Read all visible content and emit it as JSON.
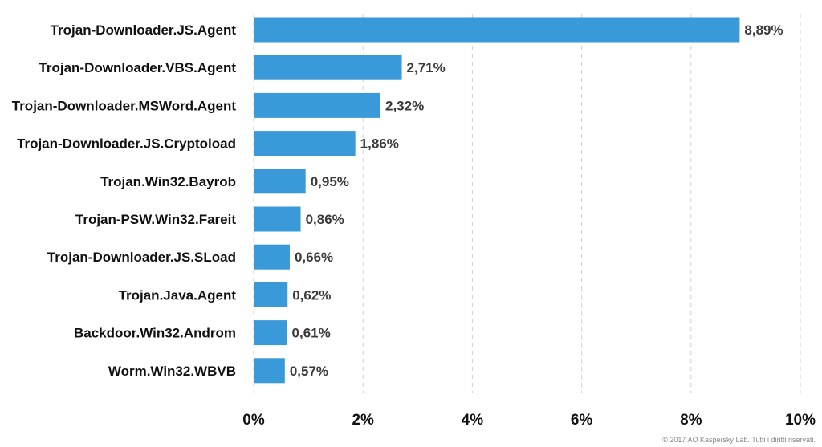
{
  "chart_data": {
    "type": "bar",
    "orientation": "horizontal",
    "categories": [
      "Trojan-Downloader.JS.Agent",
      "Trojan-Downloader.VBS.Agent",
      "Trojan-Downloader.MSWord.Agent",
      "Trojan-Downloader.JS.Cryptoload",
      "Trojan.Win32.Bayrob",
      "Trojan-PSW.Win32.Fareit",
      "Trojan-Downloader.JS.SLoad",
      "Trojan.Java.Agent",
      "Backdoor.Win32.Androm",
      "Worm.Win32.WBVB"
    ],
    "values": [
      8.89,
      2.71,
      2.32,
      1.86,
      0.95,
      0.86,
      0.66,
      0.62,
      0.61,
      0.57
    ],
    "value_labels": [
      "8,89%",
      "2,71%",
      "2,32%",
      "1,86%",
      "0,95%",
      "0,86%",
      "0,66%",
      "0,62%",
      "0,61%",
      "0,57%"
    ],
    "xlim": [
      0,
      10
    ],
    "x_ticks": [
      0,
      2,
      4,
      6,
      8,
      10
    ],
    "x_tick_labels": [
      "0%",
      "2%",
      "4%",
      "6%",
      "8%",
      "10%"
    ],
    "grid": "vertical dashed",
    "bar_color": "#3a9ad9",
    "title": "",
    "xlabel": "",
    "ylabel": ""
  },
  "footer": {
    "copyright": "© 2017 AO Kaspersky Lab. Tutti i diritti riservati."
  }
}
